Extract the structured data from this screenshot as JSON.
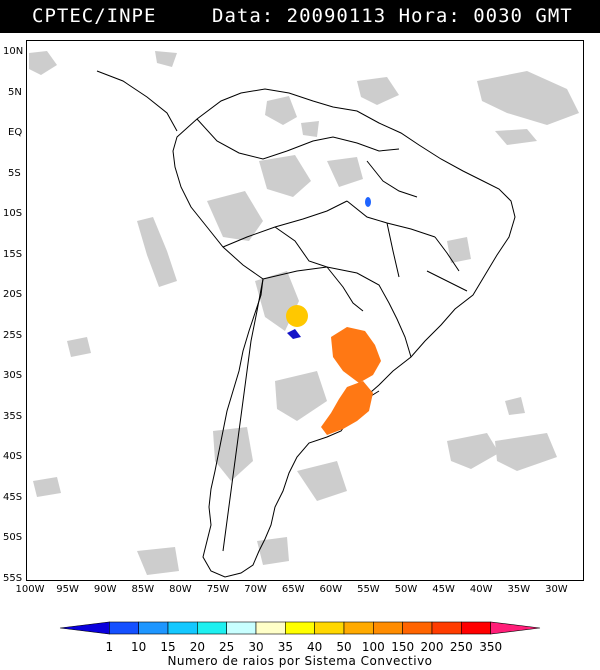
{
  "header": {
    "source": "CPTEC/INPE",
    "datetime": "Data: 20090113 Hora: 0030 GMT"
  },
  "map": {
    "lat_labels": [
      "10N",
      "5N",
      "EQ",
      "5S",
      "10S",
      "15S",
      "20S",
      "25S",
      "30S",
      "35S",
      "40S",
      "45S",
      "50S",
      "55S"
    ],
    "lon_labels": [
      "100W",
      "95W",
      "90W",
      "85W",
      "80W",
      "75W",
      "70W",
      "65W",
      "60W",
      "55W",
      "50W",
      "45W",
      "40W",
      "35W",
      "30W"
    ],
    "lat_range": [
      10,
      -55
    ],
    "lon_range": [
      -100,
      -30
    ]
  },
  "legend": {
    "ticks": [
      "1",
      "10",
      "15",
      "20",
      "25",
      "30",
      "35",
      "40",
      "50",
      "100",
      "150",
      "200",
      "250",
      "350"
    ],
    "colors": [
      "#0a00dc",
      "#1450ff",
      "#1e96ff",
      "#14c8ff",
      "#1ef0f0",
      "#c8ffff",
      "#ffffc8",
      "#ffff00",
      "#ffd700",
      "#ffaa00",
      "#ff8c00",
      "#ff6400",
      "#ff3c00",
      "#ff0000",
      "#ff1e78"
    ],
    "caption": "Numero de raios por Sistema Convectivo"
  },
  "systems": [
    {
      "name": "north-amazon-cell",
      "color": "#1e64ff"
    },
    {
      "name": "chaco-cell",
      "color": "#ffc800"
    },
    {
      "name": "andes-cell",
      "color": "#1414c8"
    },
    {
      "name": "parana-system",
      "color": "#ff7814"
    },
    {
      "name": "uruguay-system",
      "color": "#ff7814"
    }
  ]
}
